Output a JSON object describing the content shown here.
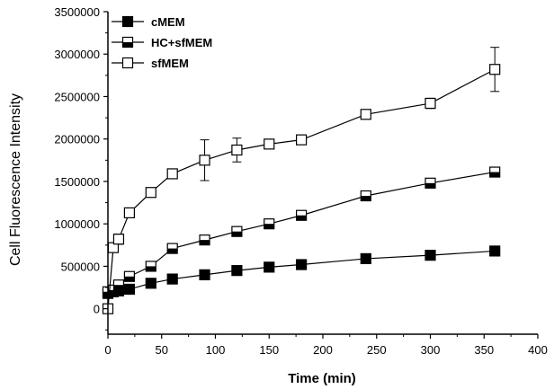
{
  "chart_data": {
    "type": "line",
    "xlabel": "Time (min)",
    "ylabel": "Cell Fluorescence Intensity",
    "xlim": [
      0,
      400
    ],
    "ylim": [
      -300000,
      3500000
    ],
    "xticks": [
      0,
      50,
      100,
      150,
      200,
      250,
      300,
      350,
      400
    ],
    "xtick_labels": [
      "0",
      "50",
      "100",
      "150",
      "200",
      "250",
      "300",
      "350",
      "400"
    ],
    "yticks": [
      0,
      500000,
      1000000,
      1500000,
      2000000,
      2500000,
      3000000,
      3500000
    ],
    "ytick_labels": [
      "0",
      "500000",
      "1000000",
      "1500000",
      "2000000",
      "2500000",
      "3000000",
      "3500000"
    ],
    "grid": false,
    "legend_position": "top-left",
    "series": [
      {
        "name": "cMEM",
        "marker": "filled-square",
        "x": [
          0,
          5,
          10,
          20,
          40,
          60,
          90,
          120,
          150,
          180,
          240,
          300,
          360
        ],
        "y": [
          180000,
          200000,
          210000,
          230000,
          300000,
          350000,
          400000,
          450000,
          490000,
          520000,
          590000,
          630000,
          680000
        ],
        "err": [
          0,
          0,
          0,
          0,
          0,
          0,
          0,
          0,
          0,
          0,
          0,
          0,
          0
        ]
      },
      {
        "name": "HC+sfMEM",
        "marker": "half-filled-square",
        "x": [
          0,
          5,
          10,
          20,
          40,
          60,
          90,
          120,
          150,
          180,
          240,
          300,
          360
        ],
        "y": [
          200000,
          220000,
          280000,
          380000,
          500000,
          710000,
          810000,
          910000,
          1000000,
          1100000,
          1330000,
          1480000,
          1610000
        ],
        "err": [
          0,
          0,
          0,
          0,
          0,
          0,
          0,
          0,
          0,
          0,
          0,
          0,
          0
        ]
      },
      {
        "name": "sfMEM",
        "marker": "open-square",
        "x": [
          0,
          5,
          10,
          20,
          40,
          60,
          90,
          120,
          150,
          180,
          240,
          300,
          360
        ],
        "y": [
          0,
          720000,
          820000,
          1130000,
          1370000,
          1590000,
          1750000,
          1870000,
          1940000,
          1990000,
          2290000,
          2420000,
          2820000
        ],
        "err": [
          0,
          0,
          60000,
          0,
          0,
          0,
          240000,
          140000,
          0,
          0,
          0,
          60000,
          260000
        ]
      }
    ]
  }
}
